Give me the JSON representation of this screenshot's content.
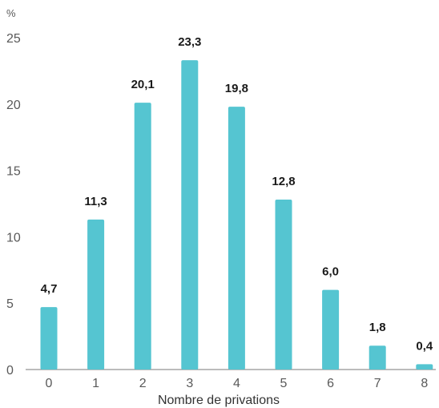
{
  "chart_data": {
    "type": "bar",
    "categories": [
      "0",
      "1",
      "2",
      "3",
      "4",
      "5",
      "6",
      "7",
      "8"
    ],
    "values": [
      4.7,
      11.3,
      20.1,
      23.3,
      19.8,
      12.8,
      6.0,
      1.8,
      0.4
    ],
    "value_labels": [
      "4,7",
      "11,3",
      "20,1",
      "23,3",
      "19,8",
      "12,8",
      "6,0",
      "1,8",
      "0,4"
    ],
    "title": "",
    "xlabel": "Nombre de privations",
    "ylabel": "%",
    "ylim": [
      0,
      25
    ],
    "yticks": [
      "0",
      "5",
      "10",
      "15",
      "20",
      "25"
    ],
    "grid": false,
    "legend": "none",
    "bar_color": "#55c5d1"
  }
}
